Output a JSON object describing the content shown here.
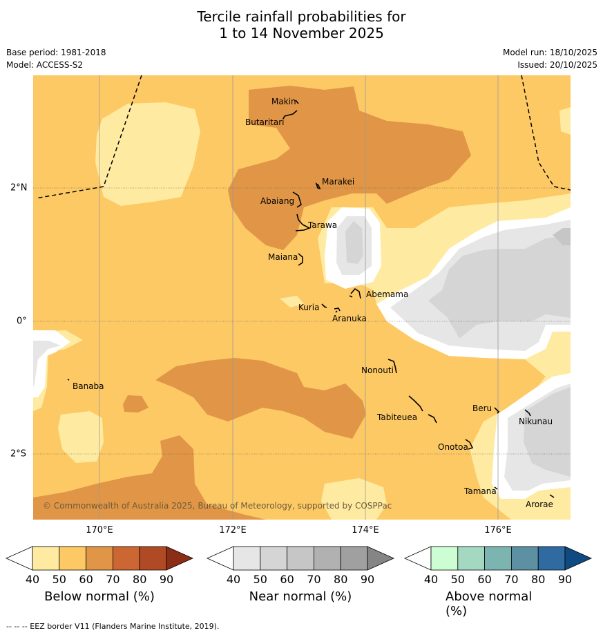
{
  "header": {
    "title_line1": "Tercile rainfall probabilities for",
    "title_line2": "1 to 14 November 2025",
    "base_period": "Base period: 1981-2018",
    "model": "Model: ACCESS-S2",
    "model_run": "Model run: 18/10/2025",
    "issued": "Issued: 20/10/2025"
  },
  "map": {
    "longitude_labels": [
      "170°E",
      "172°E",
      "174°E",
      "176°E"
    ],
    "latitude_labels": [
      "2°N",
      "0°",
      "2°S"
    ],
    "copyright": "© Commonwealth of Australia 2025, Bureau of Meteorology, supported by COSPPac",
    "islands": [
      {
        "name": "Makin"
      },
      {
        "name": "Butaritari"
      },
      {
        "name": "Marakei"
      },
      {
        "name": "Abaiang"
      },
      {
        "name": "Tarawa"
      },
      {
        "name": "Maiana"
      },
      {
        "name": "Abemama"
      },
      {
        "name": "Kuria"
      },
      {
        "name": "Aranuka"
      },
      {
        "name": "Banaba"
      },
      {
        "name": "Nonouti"
      },
      {
        "name": "Beru"
      },
      {
        "name": "Tabiteuea"
      },
      {
        "name": "Nikunau"
      },
      {
        "name": "Onotoa"
      },
      {
        "name": "Tamana"
      },
      {
        "name": "Arorae"
      }
    ]
  },
  "colorbars": [
    {
      "label": "Below normal (%)",
      "ticks": [
        "40",
        "50",
        "60",
        "70",
        "80",
        "90"
      ],
      "colors": [
        "#ffffff",
        "#feeba1",
        "#fdc965",
        "#e09646",
        "#cc6632",
        "#b04a25",
        "#8c2d15"
      ]
    },
    {
      "label": "Near normal (%)",
      "ticks": [
        "40",
        "50",
        "60",
        "70",
        "80",
        "90"
      ],
      "colors": [
        "#ffffff",
        "#e6e6e6",
        "#d5d5d5",
        "#c6c6c6",
        "#b1b1b1",
        "#a0a0a0",
        "#858585"
      ]
    },
    {
      "label": "Above normal (%)",
      "ticks": [
        "40",
        "50",
        "60",
        "70",
        "80",
        "90"
      ],
      "colors": [
        "#ffffff",
        "#ccfdd3",
        "#a4d8c0",
        "#7cb4b1",
        "#5c90a2",
        "#2f6aa0",
        "#0f4a82"
      ]
    }
  ],
  "footnote": "--  --  -- EEZ border V11 (Flanders Marine Institute, 2019)."
}
